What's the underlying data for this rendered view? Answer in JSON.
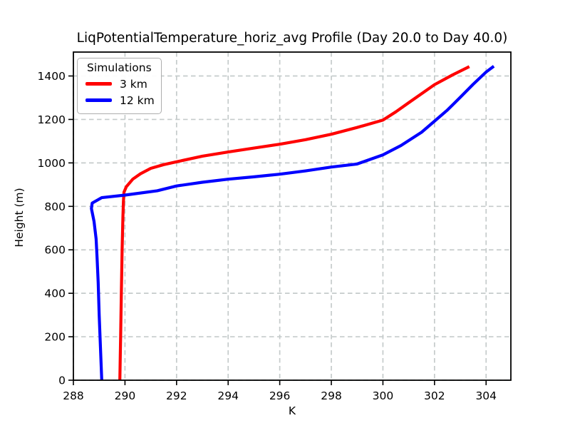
{
  "chart_data": {
    "type": "line",
    "title": "LiqPotentialTemperature_horiz_avg Profile (Day 20.0 to Day 40.0)",
    "xlabel": "K",
    "ylabel": "Height (m)",
    "xlim": [
      288.0,
      304.96
    ],
    "ylim": [
      0,
      1510
    ],
    "xticks": [
      288,
      290,
      292,
      294,
      296,
      298,
      300,
      302,
      304
    ],
    "yticks": [
      0,
      200,
      400,
      600,
      800,
      1000,
      1200,
      1400
    ],
    "grid": true,
    "grid_color": "#c5cbcb",
    "axis_color": "#000000",
    "legend": {
      "title": "Simulations",
      "position": "upper left"
    },
    "series": [
      {
        "name": "3 km",
        "color": "#ff0000",
        "points": [
          [
            289.8,
            0
          ],
          [
            289.83,
            200
          ],
          [
            289.86,
            400
          ],
          [
            289.89,
            600
          ],
          [
            289.92,
            750
          ],
          [
            289.94,
            820
          ],
          [
            289.96,
            865
          ],
          [
            290.05,
            890
          ],
          [
            290.3,
            925
          ],
          [
            290.6,
            950
          ],
          [
            291.0,
            975
          ],
          [
            291.5,
            992
          ],
          [
            292.0,
            1005
          ],
          [
            293.0,
            1031
          ],
          [
            294.0,
            1050
          ],
          [
            295.0,
            1068
          ],
          [
            296.0,
            1086
          ],
          [
            297.0,
            1107
          ],
          [
            298.0,
            1132
          ],
          [
            299.0,
            1163
          ],
          [
            300.0,
            1197
          ],
          [
            300.5,
            1235
          ],
          [
            301.0,
            1277
          ],
          [
            302.0,
            1360
          ],
          [
            302.7,
            1405
          ],
          [
            303.35,
            1443
          ]
        ]
      },
      {
        "name": "12 km",
        "color": "#0000ff",
        "points": [
          [
            289.1,
            0
          ],
          [
            289.05,
            150
          ],
          [
            289.0,
            300
          ],
          [
            288.96,
            450
          ],
          [
            288.92,
            560
          ],
          [
            288.88,
            650
          ],
          [
            288.8,
            730
          ],
          [
            288.7,
            790
          ],
          [
            288.73,
            815
          ],
          [
            289.1,
            840
          ],
          [
            290.0,
            852
          ],
          [
            291.25,
            872
          ],
          [
            292.0,
            894
          ],
          [
            293.0,
            911
          ],
          [
            294.0,
            925
          ],
          [
            295.0,
            936
          ],
          [
            296.0,
            948
          ],
          [
            297.0,
            963
          ],
          [
            298.0,
            981
          ],
          [
            299.0,
            995
          ],
          [
            300.0,
            1037
          ],
          [
            300.7,
            1080
          ],
          [
            301.5,
            1141
          ],
          [
            302.0,
            1192
          ],
          [
            302.5,
            1243
          ],
          [
            303.0,
            1302
          ],
          [
            303.5,
            1362
          ],
          [
            304.0,
            1418
          ],
          [
            304.3,
            1445
          ]
        ]
      }
    ]
  }
}
